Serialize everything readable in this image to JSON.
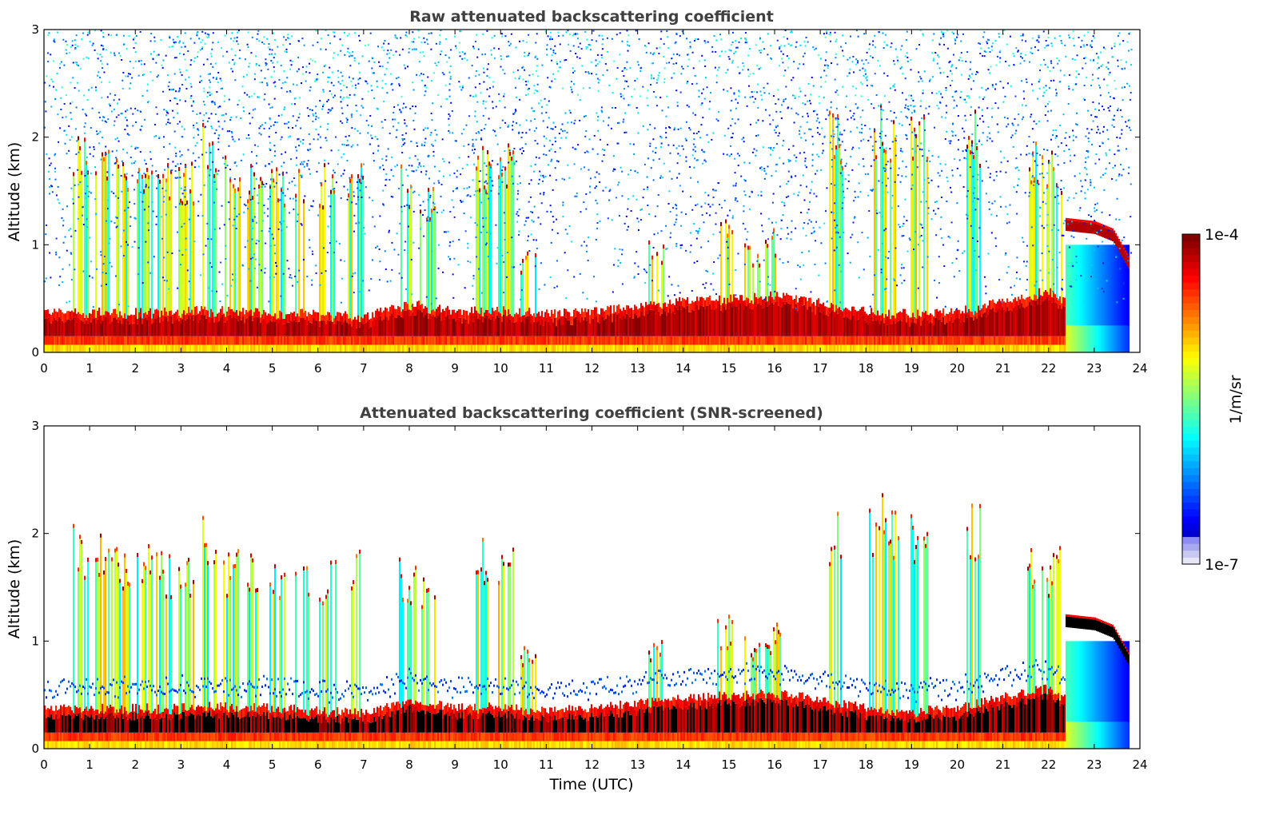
{
  "chart_data": [
    {
      "type": "heatmap",
      "title": "Raw attenuated backscattering coefficient",
      "xlabel": "",
      "ylabel": "Altitude (km)",
      "xlim": [
        0,
        24
      ],
      "ylim": [
        0,
        3
      ],
      "xticks": [
        "0",
        "1",
        "2",
        "3",
        "4",
        "5",
        "6",
        "7",
        "8",
        "9",
        "10",
        "11",
        "12",
        "13",
        "14",
        "15",
        "16",
        "17",
        "18",
        "19",
        "20",
        "21",
        "22",
        "23",
        "24"
      ],
      "yticks": [
        "0",
        "1",
        "2",
        "3"
      ],
      "data_extent_hours": 23.8,
      "boundary_layer": {
        "mixed_layer_top_km": [
          [
            0,
            0.3
          ],
          [
            2,
            0.3
          ],
          [
            4,
            0.32
          ],
          [
            6,
            0.28
          ],
          [
            7,
            0.25
          ],
          [
            8,
            0.38
          ],
          [
            9,
            0.3
          ],
          [
            10,
            0.32
          ],
          [
            11,
            0.28
          ],
          [
            12,
            0.3
          ],
          [
            13,
            0.35
          ],
          [
            14,
            0.4
          ],
          [
            15,
            0.42
          ],
          [
            16,
            0.45
          ],
          [
            17,
            0.38
          ],
          [
            18,
            0.3
          ],
          [
            19,
            0.28
          ],
          [
            20,
            0.3
          ],
          [
            21,
            0.4
          ],
          [
            22,
            0.5
          ],
          [
            22.3,
            0.4
          ]
        ]
      },
      "cloud_layers": [
        {
          "start_h": 22.35,
          "end_h": 23.8,
          "base_km": [
            [
              22.35,
              1.15
            ],
            [
              23.0,
              1.12
            ],
            [
              23.4,
              1.05
            ],
            [
              23.8,
              0.75
            ]
          ],
          "level": "max"
        }
      ],
      "plumes": [
        {
          "center_h": 0.8,
          "top_km": 2.1
        },
        {
          "center_h": 1.3,
          "top_km": 2.0
        },
        {
          "center_h": 1.7,
          "top_km": 1.9
        },
        {
          "center_h": 2.2,
          "top_km": 2.0
        },
        {
          "center_h": 2.6,
          "top_km": 1.85
        },
        {
          "center_h": 3.1,
          "top_km": 1.8
        },
        {
          "center_h": 3.6,
          "top_km": 2.2
        },
        {
          "center_h": 4.1,
          "top_km": 1.9
        },
        {
          "center_h": 4.6,
          "top_km": 1.85
        },
        {
          "center_h": 5.1,
          "top_km": 1.8
        },
        {
          "center_h": 5.6,
          "top_km": 1.75
        },
        {
          "center_h": 6.2,
          "top_km": 1.8
        },
        {
          "center_h": 6.8,
          "top_km": 1.9
        },
        {
          "center_h": 7.95,
          "top_km": 1.8
        },
        {
          "center_h": 8.4,
          "top_km": 1.6
        },
        {
          "center_h": 9.6,
          "top_km": 2.0
        },
        {
          "center_h": 10.1,
          "top_km": 2.0
        },
        {
          "center_h": 10.6,
          "top_km": 1.0
        },
        {
          "center_h": 13.4,
          "top_km": 1.1
        },
        {
          "center_h": 14.9,
          "top_km": 1.25
        },
        {
          "center_h": 15.5,
          "top_km": 1.1
        },
        {
          "center_h": 15.95,
          "top_km": 1.2
        },
        {
          "center_h": 17.3,
          "top_km": 2.3
        },
        {
          "center_h": 18.2,
          "top_km": 2.4
        },
        {
          "center_h": 18.55,
          "top_km": 2.3
        },
        {
          "center_h": 19.15,
          "top_km": 2.3
        },
        {
          "center_h": 20.35,
          "top_km": 2.3
        },
        {
          "center_h": 21.7,
          "top_km": 2.0
        },
        {
          "center_h": 22.1,
          "top_km": 1.9
        }
      ],
      "background_noise": true
    },
    {
      "type": "heatmap",
      "title": "Attenuated backscattering coefficient (SNR-screened)",
      "xlabel": "Time (UTC)",
      "ylabel": "Altitude (km)",
      "xlim": [
        0,
        24
      ],
      "ylim": [
        0,
        3
      ],
      "xticks": [
        "0",
        "1",
        "2",
        "3",
        "4",
        "5",
        "6",
        "7",
        "8",
        "9",
        "10",
        "11",
        "12",
        "13",
        "14",
        "15",
        "16",
        "17",
        "18",
        "19",
        "20",
        "21",
        "22",
        "23",
        "24"
      ],
      "yticks": [
        "0",
        "1",
        "2",
        "3"
      ],
      "data_extent_hours": 23.8,
      "boundary_layer": {
        "mixed_layer_top_km": [
          [
            0,
            0.3
          ],
          [
            2,
            0.3
          ],
          [
            4,
            0.32
          ],
          [
            6,
            0.28
          ],
          [
            7,
            0.25
          ],
          [
            8,
            0.38
          ],
          [
            9,
            0.3
          ],
          [
            10,
            0.32
          ],
          [
            11,
            0.28
          ],
          [
            12,
            0.3
          ],
          [
            13,
            0.35
          ],
          [
            14,
            0.4
          ],
          [
            15,
            0.42
          ],
          [
            16,
            0.45
          ],
          [
            17,
            0.38
          ],
          [
            18,
            0.3
          ],
          [
            19,
            0.28
          ],
          [
            20,
            0.3
          ],
          [
            21,
            0.4
          ],
          [
            22,
            0.5
          ],
          [
            22.3,
            0.4
          ]
        ]
      },
      "cloud_layers": [
        {
          "start_h": 22.35,
          "end_h": 23.8,
          "base_km": [
            [
              22.35,
              1.15
            ],
            [
              23.0,
              1.12
            ],
            [
              23.4,
              1.05
            ],
            [
              23.8,
              0.75
            ]
          ],
          "level": "saturated"
        }
      ],
      "plumes": [
        {
          "center_h": 0.8,
          "top_km": 2.1
        },
        {
          "center_h": 1.3,
          "top_km": 2.0
        },
        {
          "center_h": 1.7,
          "top_km": 1.9
        },
        {
          "center_h": 2.2,
          "top_km": 2.0
        },
        {
          "center_h": 2.6,
          "top_km": 1.85
        },
        {
          "center_h": 3.1,
          "top_km": 1.8
        },
        {
          "center_h": 3.6,
          "top_km": 2.2
        },
        {
          "center_h": 4.1,
          "top_km": 1.9
        },
        {
          "center_h": 4.6,
          "top_km": 1.85
        },
        {
          "center_h": 5.1,
          "top_km": 1.8
        },
        {
          "center_h": 5.6,
          "top_km": 1.75
        },
        {
          "center_h": 6.2,
          "top_km": 1.8
        },
        {
          "center_h": 6.8,
          "top_km": 1.9
        },
        {
          "center_h": 7.95,
          "top_km": 1.8
        },
        {
          "center_h": 8.4,
          "top_km": 1.6
        },
        {
          "center_h": 9.6,
          "top_km": 2.0
        },
        {
          "center_h": 10.1,
          "top_km": 2.0
        },
        {
          "center_h": 10.6,
          "top_km": 1.0
        },
        {
          "center_h": 13.4,
          "top_km": 1.1
        },
        {
          "center_h": 14.9,
          "top_km": 1.25
        },
        {
          "center_h": 15.5,
          "top_km": 1.1
        },
        {
          "center_h": 15.95,
          "top_km": 1.2
        },
        {
          "center_h": 17.3,
          "top_km": 2.3
        },
        {
          "center_h": 18.2,
          "top_km": 2.4
        },
        {
          "center_h": 18.55,
          "top_km": 2.3
        },
        {
          "center_h": 19.15,
          "top_km": 2.3
        },
        {
          "center_h": 20.35,
          "top_km": 2.3
        },
        {
          "center_h": 21.7,
          "top_km": 2.0
        },
        {
          "center_h": 22.1,
          "top_km": 1.9
        }
      ],
      "background_noise": false
    }
  ],
  "colorbar": {
    "label": "1/m/sr",
    "max_label": "1e-4",
    "min_label": "1e-7",
    "scale": "log",
    "colormap": "jet",
    "colors": [
      "#e0e0f8",
      "#0000ff",
      "#00bfff",
      "#40e0a0",
      "#ffff00",
      "#ff8000",
      "#ff0000",
      "#800000"
    ]
  }
}
